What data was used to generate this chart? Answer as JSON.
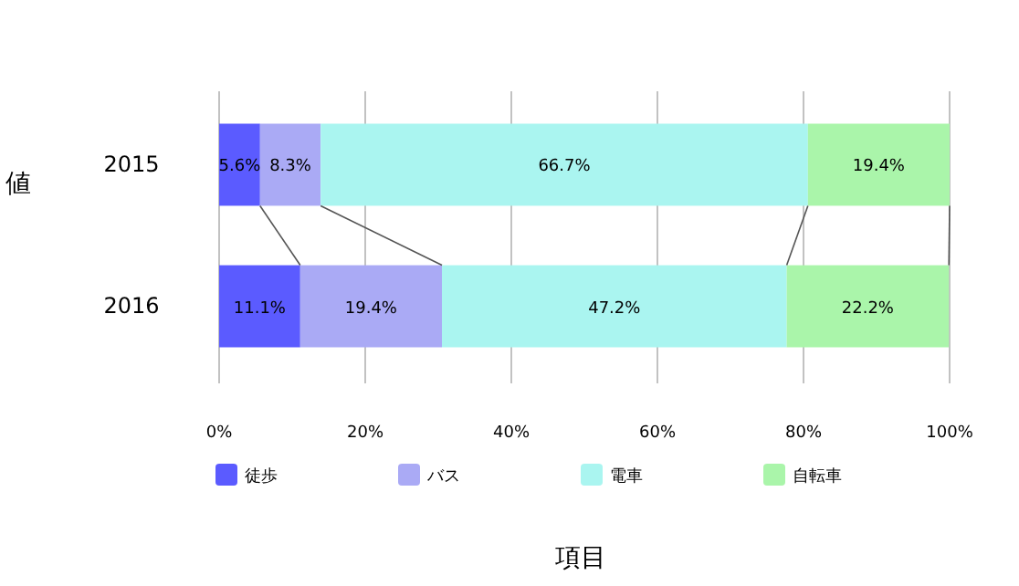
{
  "chart_data": {
    "type": "bar",
    "orientation": "horizontal",
    "stacked": true,
    "ylabel": "値",
    "xlabel": "項目",
    "categories": [
      "2015",
      "2016"
    ],
    "series": [
      {
        "name": "徒歩",
        "color": "#5b5bff",
        "values": [
          5.6,
          11.1
        ],
        "value_labels": [
          "5.6%",
          "11.1%"
        ]
      },
      {
        "name": "バス",
        "color": "#aaaaf5",
        "values": [
          8.3,
          19.4
        ],
        "value_labels": [
          "8.3%",
          "19.4%"
        ]
      },
      {
        "name": "電車",
        "color": "#aaf5f0",
        "values": [
          66.7,
          47.2
        ],
        "value_labels": [
          "66.7%",
          "47.2%"
        ]
      },
      {
        "name": "自転車",
        "color": "#aaf5aa",
        "values": [
          19.4,
          22.2
        ],
        "value_labels": [
          "19.4%",
          "22.2%"
        ]
      }
    ],
    "xlim": [
      0,
      100
    ],
    "xticks": [
      {
        "value": 0,
        "label": "0%"
      },
      {
        "value": 20,
        "label": "20%"
      },
      {
        "value": 40,
        "label": "40%"
      },
      {
        "value": 60,
        "label": "60%"
      },
      {
        "value": 80,
        "label": "80%"
      },
      {
        "value": 100,
        "label": "100%"
      }
    ],
    "grid": "x",
    "legend": "bottom"
  }
}
